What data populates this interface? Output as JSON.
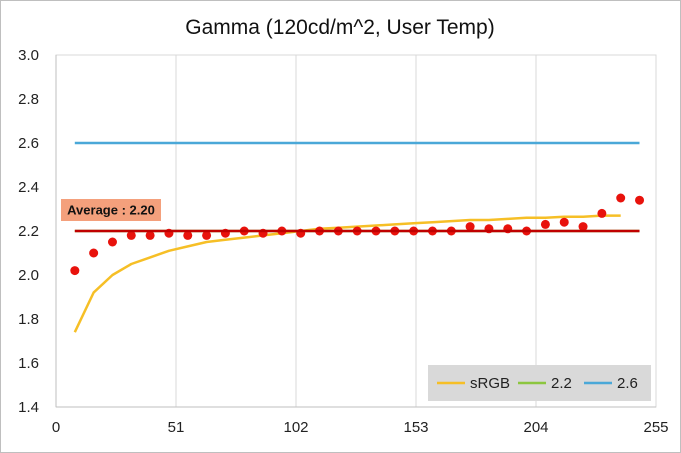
{
  "chart_data": {
    "type": "line",
    "title": "Gamma (120cd/m^2, User Temp)",
    "xlabel": "",
    "ylabel": "",
    "xlim": [
      0,
      255
    ],
    "ylim": [
      1.4,
      3.0
    ],
    "x_ticks": [
      "0",
      "51",
      "102",
      "153",
      "204",
      "255"
    ],
    "y_ticks": [
      "1.4",
      "1.6",
      "1.8",
      "2.0",
      "2.2",
      "2.4",
      "2.6",
      "2.8",
      "3.0"
    ],
    "grid": "vertical",
    "legend_position": "bottom-right",
    "series": [
      {
        "name": "sRGB",
        "color": "#f6bf26",
        "style": "line",
        "x": [
          8,
          16,
          24,
          32,
          40,
          48,
          56,
          64,
          72,
          80,
          88,
          96,
          104,
          112,
          120,
          128,
          136,
          144,
          152,
          160,
          168,
          176,
          184,
          192,
          200,
          208,
          216,
          224,
          232,
          240
        ],
        "y": [
          1.74,
          1.92,
          2.0,
          2.05,
          2.08,
          2.11,
          2.13,
          2.15,
          2.16,
          2.17,
          2.18,
          2.19,
          2.2,
          2.21,
          2.215,
          2.22,
          2.225,
          2.23,
          2.235,
          2.24,
          2.245,
          2.25,
          2.25,
          2.255,
          2.26,
          2.26,
          2.265,
          2.265,
          2.27,
          2.27
        ]
      },
      {
        "name": "2.2",
        "color": "#8cc63f",
        "style": "line",
        "x": [
          8,
          248
        ],
        "y": [
          2.2,
          2.2
        ]
      },
      {
        "name": "2.6",
        "color": "#4aa8d8",
        "style": "line",
        "x": [
          8,
          248
        ],
        "y": [
          2.6,
          2.6
        ]
      },
      {
        "name": "",
        "color": "#e8120c",
        "style": "scatter",
        "x": [
          8,
          16,
          24,
          32,
          40,
          48,
          56,
          64,
          72,
          80,
          88,
          96,
          104,
          112,
          120,
          128,
          136,
          144,
          152,
          160,
          168,
          176,
          184,
          192,
          200,
          208,
          216,
          224,
          232,
          240,
          248
        ],
        "y": [
          2.02,
          2.1,
          2.15,
          2.18,
          2.18,
          2.19,
          2.18,
          2.18,
          2.19,
          2.2,
          2.19,
          2.2,
          2.19,
          2.2,
          2.2,
          2.2,
          2.2,
          2.2,
          2.2,
          2.2,
          2.2,
          2.22,
          2.21,
          2.21,
          2.2,
          2.23,
          2.24,
          2.22,
          2.28,
          2.35,
          2.34
        ]
      }
    ],
    "average_line": {
      "value": 2.2,
      "label": "Average : 2.20",
      "color": "#c00000",
      "label_background": "#f4a07c"
    }
  }
}
